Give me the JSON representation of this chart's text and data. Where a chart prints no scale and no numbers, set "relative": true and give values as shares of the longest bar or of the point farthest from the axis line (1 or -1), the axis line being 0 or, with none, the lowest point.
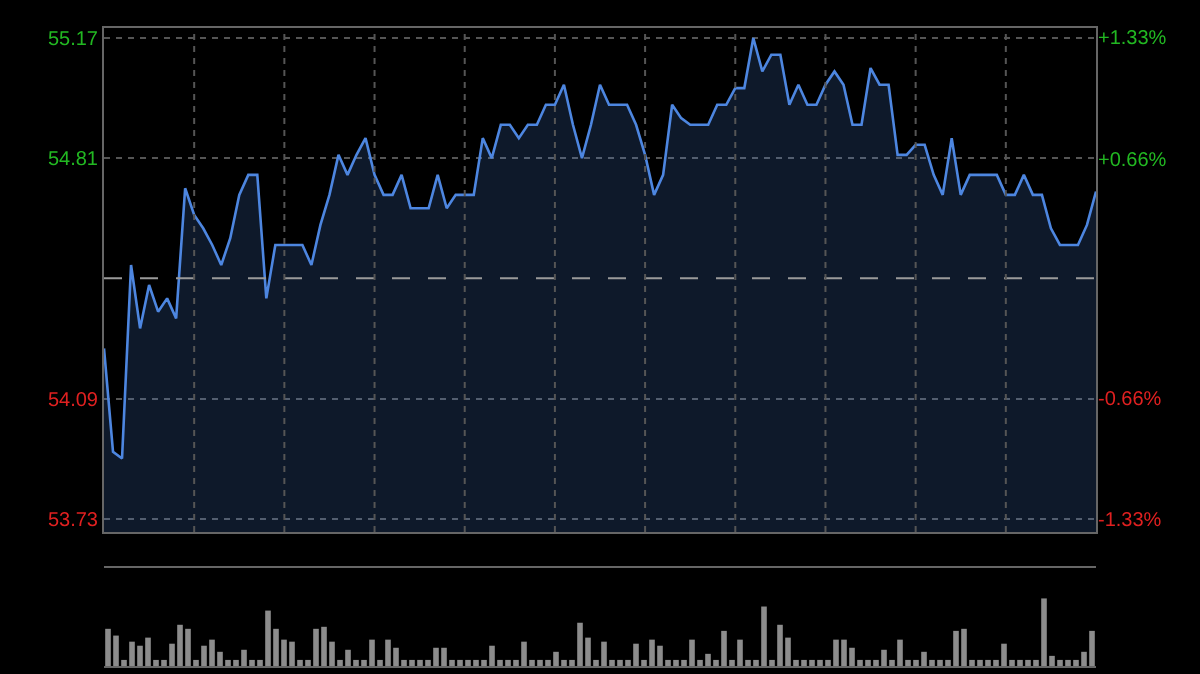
{
  "chart_data": [
    {
      "type": "area",
      "categories": [
        null,
        null,
        null,
        null,
        null,
        null,
        null,
        null,
        null,
        null,
        null,
        null,
        null,
        null,
        null,
        null,
        null,
        null,
        null,
        null,
        null,
        null,
        null,
        null,
        null,
        null,
        null,
        null,
        null,
        null,
        null,
        null,
        null,
        null,
        null,
        null,
        null,
        null,
        null,
        null,
        null,
        null,
        null,
        null,
        null,
        null,
        null,
        null,
        null,
        null,
        null,
        null,
        null,
        null,
        null,
        null,
        null,
        null,
        null,
        null,
        null,
        null,
        null,
        null,
        null,
        null,
        null,
        null,
        null,
        null,
        null,
        null,
        null,
        null,
        null,
        null,
        null,
        null,
        null,
        null,
        null,
        null,
        null,
        null,
        null,
        null,
        null,
        null,
        null,
        null,
        null,
        null,
        null,
        null,
        null,
        null,
        null,
        null,
        null,
        null,
        null,
        null,
        null,
        null,
        null,
        null,
        null,
        null,
        null,
        null,
        null
      ],
      "series": [
        {
          "color": "#4d86e0",
          "values": [
            54.24,
            53.93,
            53.91,
            54.49,
            54.3,
            54.43,
            54.35,
            54.39,
            54.33,
            54.72,
            54.64,
            54.6,
            54.55,
            54.49,
            54.57,
            54.7,
            54.76,
            54.76,
            54.39,
            54.55,
            54.55,
            54.55,
            54.55,
            54.49,
            54.61,
            54.7,
            54.82,
            54.76,
            54.82,
            54.87,
            54.76,
            54.7,
            54.7,
            54.76,
            54.66,
            54.66,
            54.66,
            54.76,
            54.66,
            54.7,
            54.7,
            54.7,
            54.87,
            54.81,
            54.91,
            54.91,
            54.87,
            54.91,
            54.91,
            54.97,
            54.97,
            55.03,
            54.91,
            54.81,
            54.91,
            55.03,
            54.97,
            54.97,
            54.97,
            54.91,
            54.82,
            54.7,
            54.76,
            54.97,
            54.93,
            54.91,
            54.91,
            54.91,
            54.97,
            54.97,
            55.02,
            55.02,
            55.17,
            55.07,
            55.12,
            55.12,
            54.97,
            55.03,
            54.97,
            54.97,
            55.03,
            55.07,
            55.03,
            54.91,
            54.91,
            55.08,
            55.03,
            55.03,
            54.82,
            54.82,
            54.85,
            54.85,
            54.76,
            54.7,
            54.87,
            54.7,
            54.76,
            54.76,
            54.76,
            54.76,
            54.7,
            54.7,
            54.76,
            54.7,
            54.7,
            54.6,
            54.55,
            54.55,
            54.55,
            54.61,
            54.71
          ]
        }
      ],
      "ylim": [
        53.69,
        55.2
      ],
      "yticks": [
        53.73,
        54.09,
        54.81,
        55.17
      ],
      "y2lim": [
        -1.4,
        1.38
      ],
      "y2ticks": [
        {
          "value": -1.33,
          "label": "-1.33%"
        },
        {
          "value": -0.66,
          "label": "-0.66%"
        },
        {
          "value": 0.66,
          "label": "+0.66%"
        },
        {
          "value": 1.33,
          "label": "+1.33%"
        }
      ],
      "ref_lines": [
        {
          "axis": "y",
          "value": 54.45,
          "color": "#9a9a9a",
          "line_style": "dashed"
        }
      ],
      "grid": true
    },
    {
      "type": "bar",
      "relative": true,
      "color": "#8c8c8c",
      "categories": [
        null,
        null,
        null,
        null,
        null,
        null,
        null,
        null,
        null,
        null,
        null,
        null,
        null,
        null,
        null,
        null,
        null,
        null,
        null,
        null,
        null,
        null,
        null,
        null,
        null,
        null,
        null,
        null,
        null,
        null,
        null,
        null,
        null,
        null,
        null,
        null,
        null,
        null,
        null,
        null,
        null,
        null,
        null,
        null,
        null,
        null,
        null,
        null,
        null,
        null,
        null,
        null,
        null,
        null,
        null,
        null,
        null,
        null,
        null,
        null,
        null,
        null,
        null,
        null,
        null,
        null,
        null,
        null,
        null,
        null,
        null,
        null,
        null,
        null,
        null,
        null,
        null,
        null,
        null,
        null,
        null,
        null,
        null,
        null,
        null,
        null,
        null,
        null,
        null,
        null,
        null,
        null,
        null,
        null,
        null,
        null,
        null,
        null,
        null,
        null,
        null,
        null,
        null,
        null,
        null,
        null,
        null,
        null,
        null,
        null,
        null,
        null,
        null,
        null,
        null,
        null,
        null,
        null,
        null,
        null,
        null,
        null,
        null,
        null
      ],
      "values": [
        0.55,
        0.45,
        0.09,
        0.36,
        0.3,
        0.42,
        0.09,
        0.09,
        0.33,
        0.61,
        0.55,
        0.09,
        0.3,
        0.39,
        0.21,
        0.09,
        0.09,
        0.24,
        0.09,
        0.09,
        0.82,
        0.55,
        0.39,
        0.36,
        0.09,
        0.09,
        0.55,
        0.58,
        0.36,
        0.09,
        0.24,
        0.09,
        0.09,
        0.39,
        0.09,
        0.39,
        0.27,
        0.09,
        0.09,
        0.09,
        0.09,
        0.27,
        0.27,
        0.09,
        0.09,
        0.09,
        0.09,
        0.09,
        0.3,
        0.09,
        0.09,
        0.09,
        0.36,
        0.09,
        0.09,
        0.09,
        0.21,
        0.09,
        0.09,
        0.64,
        0.42,
        0.09,
        0.36,
        0.09,
        0.09,
        0.09,
        0.33,
        0.09,
        0.39,
        0.3,
        0.09,
        0.09,
        0.09,
        0.39,
        0.09,
        0.18,
        0.09,
        0.52,
        0.09,
        0.39,
        0.09,
        0.09,
        0.88,
        0.09,
        0.61,
        0.42,
        0.09,
        0.09,
        0.09,
        0.09,
        0.09,
        0.39,
        0.39,
        0.27,
        0.09,
        0.09,
        0.09,
        0.24,
        0.09,
        0.39,
        0.09,
        0.09,
        0.21,
        0.09,
        0.09,
        0.09,
        0.52,
        0.55,
        0.09,
        0.09,
        0.09,
        0.09,
        0.33,
        0.09,
        0.09,
        0.09,
        0.09,
        1,
        0.15,
        0.09,
        0.09,
        0.09,
        0.21,
        0.52
      ]
    }
  ]
}
